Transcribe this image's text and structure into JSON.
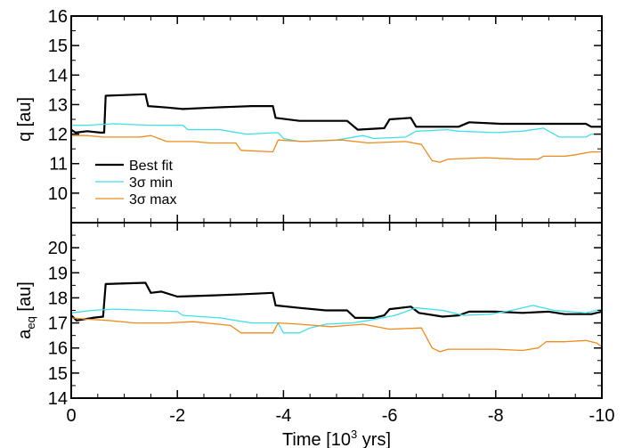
{
  "colors": {
    "best": "#000000",
    "min": "#3de0e8",
    "max": "#f08a1c",
    "axis": "#000000"
  },
  "chart_data": {
    "type": "line",
    "x_label_main": "Time [10",
    "x_label_sup": "3",
    "x_label_tail": " yrs]",
    "x_range": [
      0,
      -10
    ],
    "x_ticks": [
      0,
      -2,
      -4,
      -6,
      -8,
      -10
    ],
    "x_tick_labels": [
      "0",
      "-2",
      "-4",
      "-6",
      "-8",
      "-10"
    ],
    "legend_position": "lower-left of top panel",
    "panels": [
      {
        "ylabel": "q [au]",
        "ylim": [
          9,
          16
        ],
        "yticks": [
          10,
          11,
          12,
          13,
          14,
          15,
          16
        ],
        "legend": [
          "Best fit",
          "3σ min",
          "3σ max"
        ],
        "series": [
          {
            "name": "Best fit",
            "color_key": "best",
            "width": 2.2,
            "points": [
              [
                0,
                12.15
              ],
              [
                -0.08,
                12.05
              ],
              [
                -0.3,
                12.1
              ],
              [
                -0.55,
                12.05
              ],
              [
                -0.62,
                12.05
              ],
              [
                -0.65,
                13.3
              ],
              [
                -1.4,
                13.35
              ],
              [
                -1.45,
                12.95
              ],
              [
                -1.8,
                12.9
              ],
              [
                -2.1,
                12.85
              ],
              [
                -2.7,
                12.9
              ],
              [
                -3.4,
                12.95
              ],
              [
                -3.8,
                12.95
              ],
              [
                -3.85,
                12.55
              ],
              [
                -4.3,
                12.45
              ],
              [
                -5.2,
                12.45
              ],
              [
                -5.4,
                12.15
              ],
              [
                -5.9,
                12.2
              ],
              [
                -6.0,
                12.5
              ],
              [
                -6.4,
                12.55
              ],
              [
                -6.5,
                12.25
              ],
              [
                -7.3,
                12.25
              ],
              [
                -7.5,
                12.4
              ],
              [
                -8.1,
                12.35
              ],
              [
                -9.0,
                12.35
              ],
              [
                -9.7,
                12.35
              ],
              [
                -9.8,
                12.25
              ],
              [
                -10,
                12.25
              ]
            ]
          },
          {
            "name": "3σ min",
            "color_key": "min",
            "width": 1.3,
            "points": [
              [
                0,
                12.3
              ],
              [
                -0.3,
                12.3
              ],
              [
                -0.8,
                12.35
              ],
              [
                -1.5,
                12.3
              ],
              [
                -2.1,
                12.3
              ],
              [
                -2.2,
                12.15
              ],
              [
                -2.8,
                12.15
              ],
              [
                -3.3,
                12.0
              ],
              [
                -3.9,
                12.05
              ],
              [
                -4.0,
                11.85
              ],
              [
                -4.3,
                11.75
              ],
              [
                -5.0,
                11.8
              ],
              [
                -5.5,
                11.95
              ],
              [
                -5.7,
                11.85
              ],
              [
                -6.3,
                11.9
              ],
              [
                -6.5,
                12.1
              ],
              [
                -7.1,
                12.15
              ],
              [
                -7.3,
                12.1
              ],
              [
                -8.0,
                12.05
              ],
              [
                -8.5,
                12.1
              ],
              [
                -8.9,
                12.2
              ],
              [
                -9.2,
                11.9
              ],
              [
                -9.7,
                11.9
              ],
              [
                -9.8,
                12.0
              ],
              [
                -10,
                12.0
              ]
            ]
          },
          {
            "name": "3σ max",
            "color_key": "max",
            "width": 1.3,
            "points": [
              [
                0,
                11.95
              ],
              [
                -0.3,
                11.95
              ],
              [
                -0.6,
                11.9
              ],
              [
                -1.3,
                11.9
              ],
              [
                -1.5,
                11.95
              ],
              [
                -1.8,
                11.75
              ],
              [
                -2.3,
                11.75
              ],
              [
                -2.6,
                11.7
              ],
              [
                -3.1,
                11.7
              ],
              [
                -3.2,
                11.45
              ],
              [
                -3.8,
                11.4
              ],
              [
                -3.9,
                11.8
              ],
              [
                -4.4,
                11.75
              ],
              [
                -5.1,
                11.8
              ],
              [
                -5.6,
                11.7
              ],
              [
                -6.3,
                11.75
              ],
              [
                -6.6,
                11.65
              ],
              [
                -6.8,
                11.1
              ],
              [
                -6.95,
                11.05
              ],
              [
                -7.1,
                11.15
              ],
              [
                -7.8,
                11.2
              ],
              [
                -8.4,
                11.15
              ],
              [
                -8.8,
                11.15
              ],
              [
                -8.9,
                11.25
              ],
              [
                -9.3,
                11.25
              ],
              [
                -9.5,
                11.3
              ],
              [
                -9.8,
                11.4
              ],
              [
                -10,
                11.4
              ]
            ]
          }
        ]
      },
      {
        "ylabel_main": "a",
        "ylabel_sub": "eq",
        "ylabel_tail": " [au]",
        "ylim": [
          14,
          21
        ],
        "yticks": [
          14,
          15,
          16,
          17,
          18,
          19,
          20
        ],
        "series": [
          {
            "name": "Best fit",
            "color_key": "best",
            "width": 2.2,
            "points": [
              [
                0,
                17.3
              ],
              [
                -0.1,
                17.1
              ],
              [
                -0.4,
                17.2
              ],
              [
                -0.6,
                17.25
              ],
              [
                -0.65,
                18.55
              ],
              [
                -1.4,
                18.6
              ],
              [
                -1.5,
                18.2
              ],
              [
                -1.7,
                18.25
              ],
              [
                -2.0,
                18.05
              ],
              [
                -2.7,
                18.1
              ],
              [
                -3.3,
                18.15
              ],
              [
                -3.8,
                18.2
              ],
              [
                -3.85,
                17.7
              ],
              [
                -4.3,
                17.6
              ],
              [
                -4.8,
                17.5
              ],
              [
                -5.2,
                17.5
              ],
              [
                -5.35,
                17.2
              ],
              [
                -5.7,
                17.2
              ],
              [
                -5.9,
                17.3
              ],
              [
                -6.0,
                17.55
              ],
              [
                -6.4,
                17.65
              ],
              [
                -6.55,
                17.4
              ],
              [
                -7.0,
                17.25
              ],
              [
                -7.3,
                17.3
              ],
              [
                -7.5,
                17.45
              ],
              [
                -8.0,
                17.45
              ],
              [
                -8.5,
                17.4
              ],
              [
                -9.0,
                17.45
              ],
              [
                -9.3,
                17.35
              ],
              [
                -9.8,
                17.35
              ],
              [
                -10,
                17.45
              ]
            ]
          },
          {
            "name": "3σ min",
            "color_key": "min",
            "width": 1.3,
            "points": [
              [
                0,
                17.4
              ],
              [
                -0.4,
                17.5
              ],
              [
                -0.8,
                17.55
              ],
              [
                -1.5,
                17.5
              ],
              [
                -2.0,
                17.45
              ],
              [
                -2.1,
                17.3
              ],
              [
                -2.8,
                17.2
              ],
              [
                -3.4,
                17.0
              ],
              [
                -3.9,
                17.0
              ],
              [
                -4.0,
                16.6
              ],
              [
                -4.3,
                16.6
              ],
              [
                -4.5,
                16.8
              ],
              [
                -4.8,
                16.95
              ],
              [
                -5.3,
                17.0
              ],
              [
                -5.6,
                17.1
              ],
              [
                -6.1,
                17.3
              ],
              [
                -6.5,
                17.6
              ],
              [
                -7.0,
                17.5
              ],
              [
                -7.4,
                17.3
              ],
              [
                -7.9,
                17.35
              ],
              [
                -8.3,
                17.5
              ],
              [
                -8.7,
                17.7
              ],
              [
                -9.1,
                17.5
              ],
              [
                -9.7,
                17.4
              ],
              [
                -10,
                17.55
              ]
            ]
          },
          {
            "name": "3σ max",
            "color_key": "max",
            "width": 1.3,
            "points": [
              [
                0,
                17.2
              ],
              [
                -0.3,
                17.15
              ],
              [
                -0.7,
                17.1
              ],
              [
                -1.2,
                17.0
              ],
              [
                -1.8,
                17.0
              ],
              [
                -2.3,
                17.05
              ],
              [
                -3.0,
                16.9
              ],
              [
                -3.2,
                16.6
              ],
              [
                -3.8,
                16.6
              ],
              [
                -3.9,
                17.0
              ],
              [
                -4.3,
                16.95
              ],
              [
                -4.9,
                16.85
              ],
              [
                -5.5,
                16.95
              ],
              [
                -6.0,
                16.75
              ],
              [
                -6.6,
                16.8
              ],
              [
                -6.8,
                16.0
              ],
              [
                -6.95,
                15.85
              ],
              [
                -7.1,
                15.95
              ],
              [
                -7.6,
                15.95
              ],
              [
                -8.0,
                15.95
              ],
              [
                -8.5,
                15.9
              ],
              [
                -8.8,
                16.0
              ],
              [
                -8.95,
                16.25
              ],
              [
                -9.3,
                16.25
              ],
              [
                -9.7,
                16.3
              ],
              [
                -9.9,
                16.2
              ],
              [
                -10,
                16.05
              ]
            ]
          }
        ]
      }
    ]
  }
}
